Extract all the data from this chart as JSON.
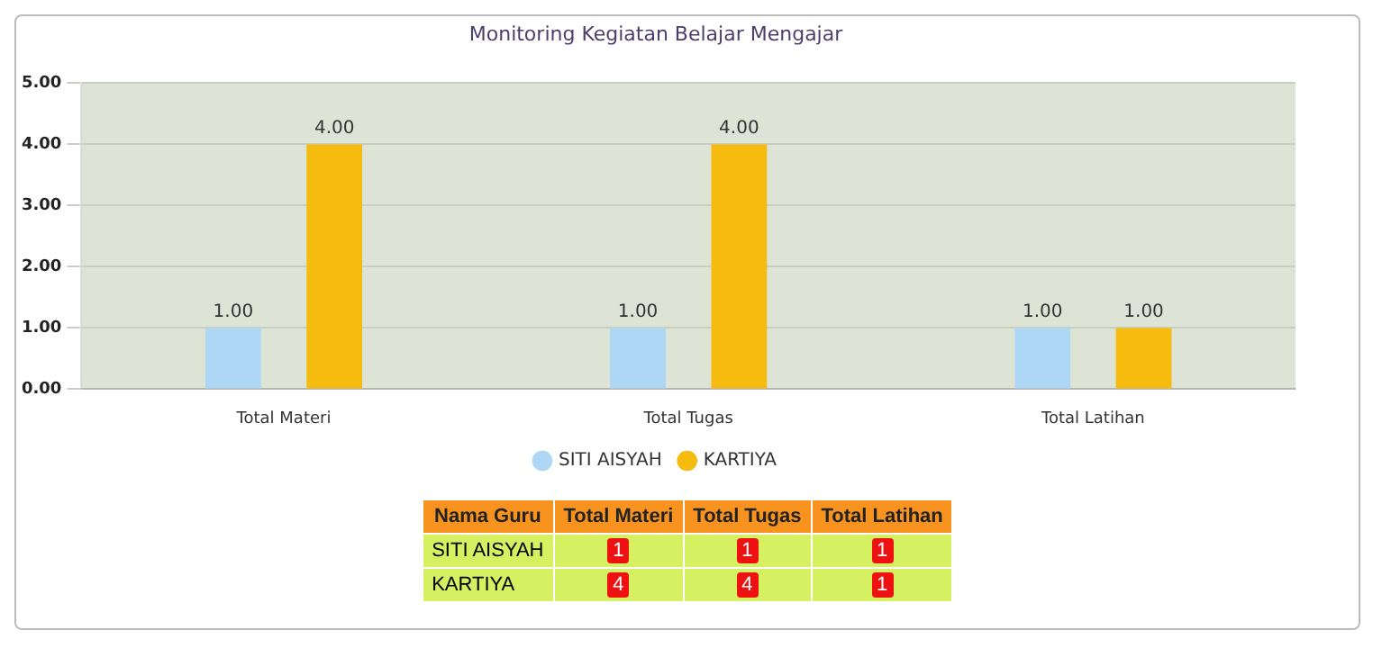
{
  "chart_data": {
    "type": "bar",
    "title": "Monitoring Kegiatan Belajar Mengajar",
    "categories": [
      "Total Materi",
      "Total Tugas",
      "Total Latihan"
    ],
    "series": [
      {
        "name": "SITI AISYAH",
        "color": "#aed6f5",
        "values": [
          1,
          1,
          1
        ],
        "value_labels": [
          "1.00",
          "1.00",
          "1.00"
        ]
      },
      {
        "name": "KARTIYA",
        "color": "#f5bb0f",
        "values": [
          4,
          4,
          1
        ],
        "value_labels": [
          "4.00",
          "4.00",
          "1.00"
        ]
      }
    ],
    "ylim": [
      0,
      5
    ],
    "yticks": [
      {
        "value": 0,
        "label": "0.00"
      },
      {
        "value": 1,
        "label": "1.00"
      },
      {
        "value": 2,
        "label": "2.00"
      },
      {
        "value": 3,
        "label": "3.00"
      },
      {
        "value": 4,
        "label": "4.00"
      },
      {
        "value": 5,
        "label": "5.00"
      }
    ],
    "grid": "y",
    "legend": "bottom",
    "annotations": [
      "Nama Guru",
      "1",
      "1",
      "1",
      "4",
      "4",
      "1"
    ]
  }
}
